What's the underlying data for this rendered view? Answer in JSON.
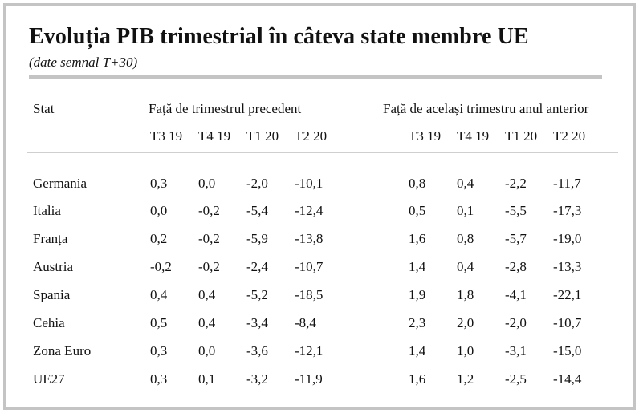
{
  "title": "Evoluția PIB trimestrial în câteva state membre UE",
  "subtitle": "(date semnal T+30)",
  "table": {
    "stat_header": "Stat",
    "group1_header": "Față de trimestrul precedent",
    "group2_header": "Față de același trimestru anul anterior",
    "quarters": [
      "T3 19",
      "T4 19",
      "T1 20",
      "T2 20"
    ],
    "rows": [
      {
        "stat": "Germania",
        "prev": [
          "0,3",
          "0,0",
          "-2,0",
          "-10,1"
        ],
        "yoy": [
          "0,8",
          "0,4",
          "-2,2",
          "-11,7"
        ]
      },
      {
        "stat": "Italia",
        "prev": [
          "0,0",
          "-0,2",
          "-5,4",
          "-12,4"
        ],
        "yoy": [
          "0,5",
          "0,1",
          "-5,5",
          "-17,3"
        ]
      },
      {
        "stat": "Franța",
        "prev": [
          "0,2",
          "-0,2",
          "-5,9",
          "-13,8"
        ],
        "yoy": [
          "1,6",
          "0,8",
          "-5,7",
          "-19,0"
        ]
      },
      {
        "stat": "Austria",
        "prev": [
          "-0,2",
          "-0,2",
          "-2,4",
          "-10,7"
        ],
        "yoy": [
          "1,4",
          "0,4",
          "-2,8",
          "-13,3"
        ]
      },
      {
        "stat": "Spania",
        "prev": [
          "0,4",
          "0,4",
          "-5,2",
          "-18,5"
        ],
        "yoy": [
          "1,9",
          "1,8",
          "-4,1",
          "-22,1"
        ]
      },
      {
        "stat": "Cehia",
        "prev": [
          "0,5",
          "0,4",
          "-3,4",
          "-8,4"
        ],
        "yoy": [
          "2,3",
          "2,0",
          "-2,0",
          "-10,7"
        ]
      },
      {
        "stat": "Zona Euro",
        "prev": [
          "0,3",
          "0,0",
          "-3,6",
          "-12,1"
        ],
        "yoy": [
          "1,4",
          "1,0",
          "-3,1",
          "-15,0"
        ]
      },
      {
        "stat": "UE27",
        "prev": [
          "0,3",
          "0,1",
          "-3,2",
          "-11,9"
        ],
        "yoy": [
          "1,6",
          "1,2",
          "-2,5",
          "-14,4"
        ]
      }
    ]
  }
}
